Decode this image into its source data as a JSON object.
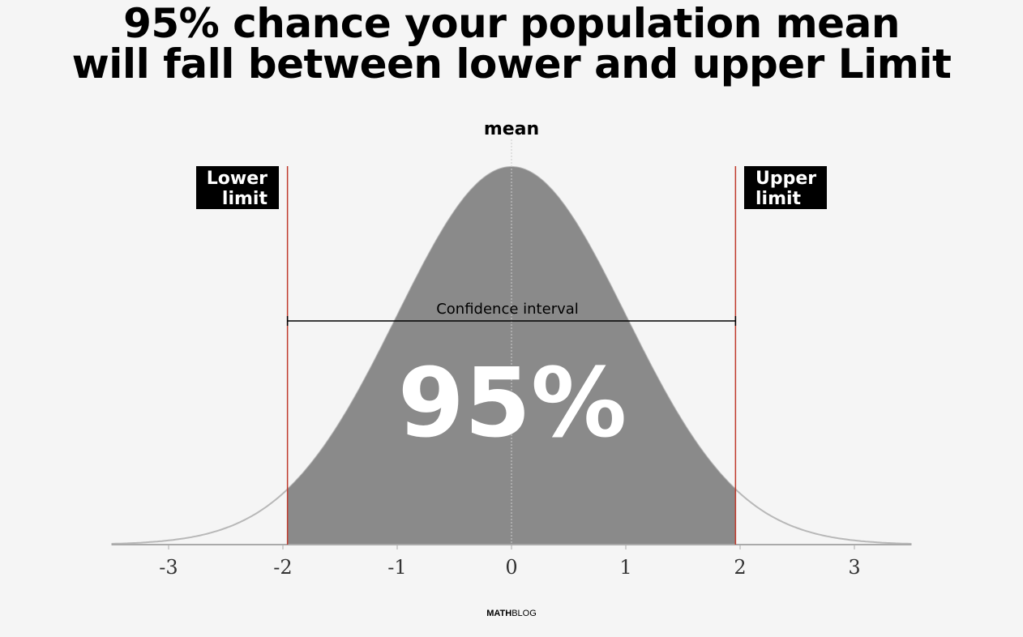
{
  "title": {
    "line1": "95% chance your population mean",
    "line2": "will fall between lower and upper Limit"
  },
  "labels": {
    "mean": "mean",
    "lower_limit": [
      "Lower",
      "limit"
    ],
    "upper_limit": [
      "Upper",
      "limit"
    ],
    "confidence_interval": "Confidence interval",
    "percentage": "95%"
  },
  "footer": {
    "brand_bold": "MATH",
    "brand_regular": "BLOG"
  },
  "chart_data": {
    "type": "area",
    "distribution": "standard normal",
    "x_ticks": [
      "-3",
      "-2",
      "-1",
      "0",
      "1",
      "2",
      "3"
    ],
    "xlim": [
      -3.5,
      3.5
    ],
    "shaded_interval": [
      -1.96,
      1.96
    ],
    "confidence_level": 0.95,
    "colors": {
      "shaded": "#8a8a8a",
      "curve": "#b8b8b8",
      "limit_line": "#c0392b",
      "background": "#f5f5f5"
    }
  }
}
